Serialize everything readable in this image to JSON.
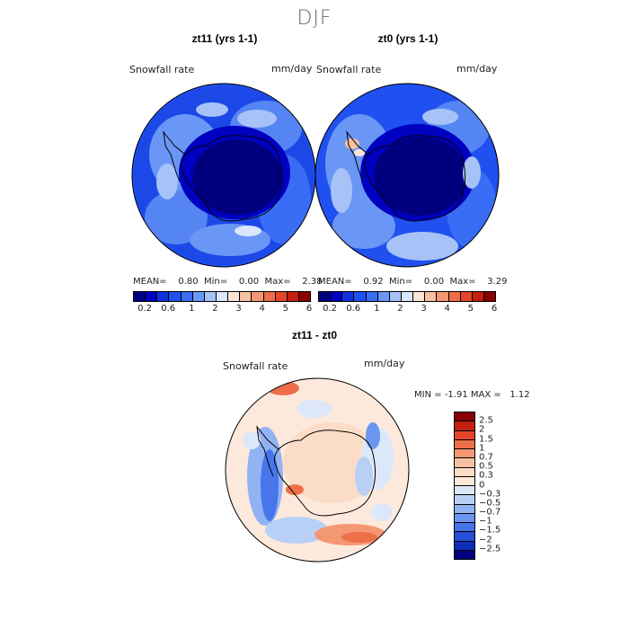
{
  "season": "DJF",
  "panels": [
    {
      "title": "zt11 (yrs 1-1)",
      "var_label": "Snowfall rate",
      "units": "mm/day",
      "stats": {
        "mean_label": "MEAN=",
        "mean": "0.80",
        "min_label": "Min=",
        "min": "0.00",
        "max_label": "Max=",
        "max": "2.38"
      }
    },
    {
      "title": "zt0 (yrs 1-1)",
      "var_label": "Snowfall rate",
      "units": "mm/day",
      "stats": {
        "mean_label": "MEAN=",
        "mean": "0.92",
        "min_label": "Min=",
        "min": "0.00",
        "max_label": "Max=",
        "max": "3.29"
      }
    }
  ],
  "abs_colorbar": {
    "colors": [
      "#00007f",
      "#0000c0",
      "#1030e0",
      "#2050f0",
      "#3a6df5",
      "#6a96f5",
      "#a6c2f7",
      "#d9e6fb",
      "#fbe6d6",
      "#f6c0a3",
      "#f49874",
      "#ef6e4a",
      "#e5452a",
      "#c41f10",
      "#8b0000"
    ],
    "ticks": [
      "0.2",
      "0.6",
      "1",
      "2",
      "3",
      "4",
      "5",
      "6"
    ]
  },
  "diff_panel": {
    "title": "zt11 - zt0",
    "var_label": "Snowfall rate",
    "units": "mm/day",
    "min_label": "MIN =",
    "min": "-1.91",
    "max_label": "MAX =",
    "max": "1.12"
  },
  "diff_colorbar": {
    "colors": [
      "#8b0000",
      "#c41f10",
      "#e5452a",
      "#ef6e4a",
      "#f49874",
      "#f6c0a3",
      "#fbdcc6",
      "#fde9dc",
      "#dce8fa",
      "#b9d0f6",
      "#92b3f3",
      "#6a96f0",
      "#4676ea",
      "#2550d8",
      "#0a2eb8",
      "#00007f"
    ],
    "ticks": [
      "2.5",
      "2",
      "1.5",
      "1",
      "0.7",
      "0.5",
      "0.3",
      "0",
      "−0.3",
      "−0.5",
      "−0.7",
      "−1",
      "−1.5",
      "−2",
      "−2.5"
    ]
  }
}
